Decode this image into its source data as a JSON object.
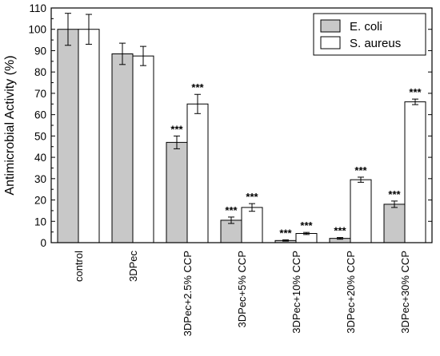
{
  "chart_data": {
    "type": "bar",
    "xlabel": "",
    "ylabel": "Antimicrobial Activity (%)",
    "ylim": [
      0,
      110
    ],
    "yticks": [
      0,
      10,
      20,
      30,
      40,
      50,
      60,
      70,
      80,
      90,
      100,
      110
    ],
    "grid": false,
    "legend_position": "top-right",
    "categories": [
      "control",
      "3DPec",
      "3DPec+2.5% CCP",
      "3DPec+5% CCP",
      "3DPec+10% CCP",
      "3DPec+20% CCP",
      "3DPec+30% CCP"
    ],
    "series": [
      {
        "name": "E. coli",
        "color": "#c8c8c8",
        "values": [
          100,
          88.5,
          47,
          10.5,
          1,
          2,
          18
        ],
        "errors": [
          7.5,
          5,
          3,
          1.5,
          0.3,
          0.4,
          1.5
        ],
        "annotations": [
          "",
          "",
          "***",
          "***",
          "***",
          "***",
          "***"
        ]
      },
      {
        "name": "S. aureus",
        "color": "#ffffff",
        "values": [
          100,
          87.5,
          65,
          16.5,
          4.3,
          29.5,
          66
        ],
        "errors": [
          7,
          4.5,
          4.5,
          1.8,
          0.5,
          1.2,
          1.3
        ],
        "annotations": [
          "",
          "",
          "***",
          "***",
          "***",
          "***",
          "***"
        ]
      }
    ]
  }
}
